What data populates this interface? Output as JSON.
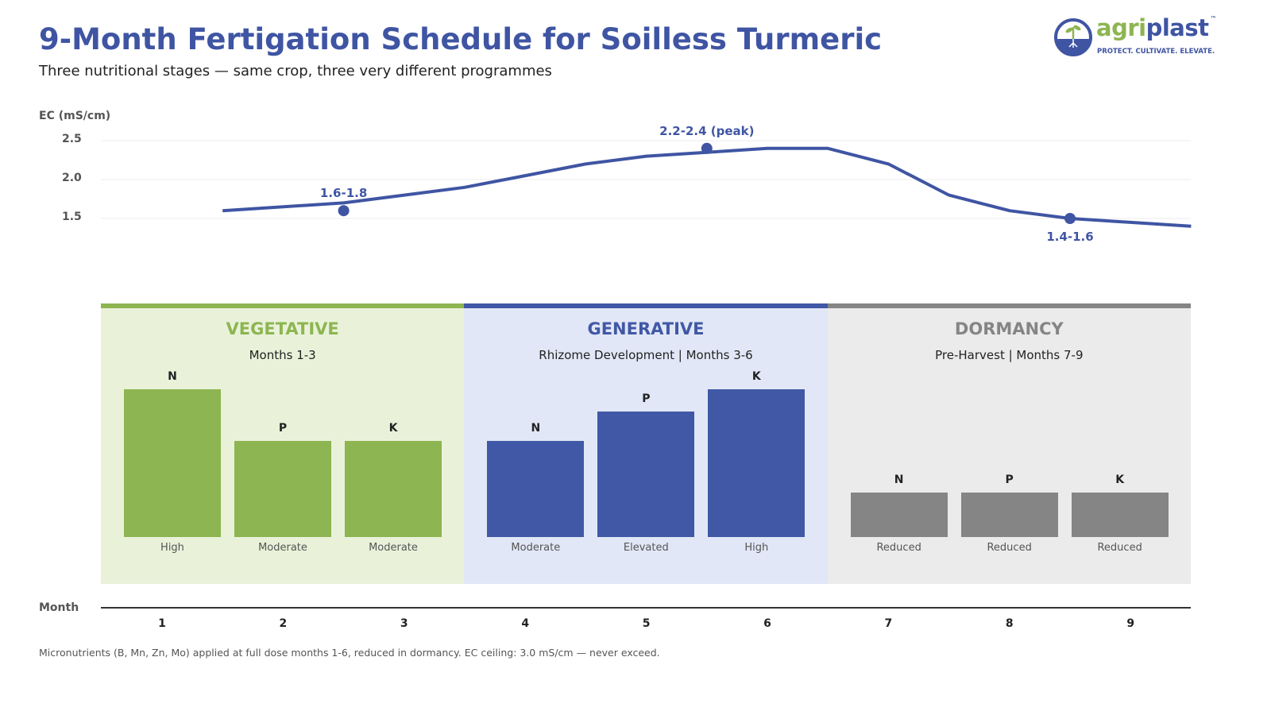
{
  "header": {
    "title": "9-Month Fertigation Schedule for Soilless Turmeric",
    "subtitle": "Three nutritional stages — same crop, three very different programmes"
  },
  "logo": {
    "name_part1": "agri",
    "name_part2": "plast",
    "tm": "™",
    "tagline": "PROTECT. CULTIVATE. ELEVATE."
  },
  "colors": {
    "vegetative": "#8db551",
    "generative": "#4158a6",
    "dormancy": "#858585",
    "line": "#3f55a3"
  },
  "chart_data": [
    {
      "type": "line",
      "ylabel": "EC (mS/cm)",
      "yticks": [
        "1.5",
        "2.0",
        "2.5"
      ],
      "ylim": [
        1.3,
        2.6
      ],
      "xlim": [
        0.5,
        9.5
      ],
      "grid": true,
      "x": [
        1.5,
        2.5,
        3,
        3.5,
        4,
        4.5,
        5,
        5.5,
        6,
        6.5,
        7,
        7.5,
        8,
        8.5,
        9,
        9.5
      ],
      "y": [
        1.6,
        1.7,
        1.8,
        1.9,
        2.05,
        2.2,
        2.3,
        2.35,
        2.4,
        2.4,
        2.2,
        1.8,
        1.6,
        1.5,
        1.45,
        1.4
      ],
      "annotations": [
        {
          "x": 2.5,
          "y": 1.6,
          "label": "1.6-1.8",
          "position": "above"
        },
        {
          "x": 5.5,
          "y": 2.4,
          "label": "2.2-2.4 (peak)",
          "position": "above"
        },
        {
          "x": 8.5,
          "y": 1.5,
          "label": "1.4-1.6",
          "position": "below"
        }
      ]
    },
    {
      "type": "bar",
      "xlabel": "Month",
      "xticks": [
        "1",
        "2",
        "3",
        "4",
        "5",
        "6",
        "7",
        "8",
        "9"
      ],
      "stages": [
        {
          "name": "VEGETATIVE",
          "subtitle": "Months 1-3",
          "color_key": "vegetative",
          "bg": "#e9f2d9",
          "bars": [
            {
              "nutrient": "N",
              "level": "High",
              "value": 1.0
            },
            {
              "nutrient": "P",
              "level": "Moderate",
              "value": 0.65
            },
            {
              "nutrient": "K",
              "level": "Moderate",
              "value": 0.65
            }
          ]
        },
        {
          "name": "GENERATIVE",
          "subtitle": "Rhizome Development | Months 3-6",
          "color_key": "generative",
          "bg": "#e1e7f6",
          "bars": [
            {
              "nutrient": "N",
              "level": "Moderate",
              "value": 0.65
            },
            {
              "nutrient": "P",
              "level": "Elevated",
              "value": 0.85
            },
            {
              "nutrient": "K",
              "level": "High",
              "value": 1.0
            }
          ]
        },
        {
          "name": "DORMANCY",
          "subtitle": "Pre-Harvest | Months 7-9",
          "color_key": "dormancy",
          "bg": "#ebebeb",
          "bars": [
            {
              "nutrient": "N",
              "level": "Reduced",
              "value": 0.3
            },
            {
              "nutrient": "P",
              "level": "Reduced",
              "value": 0.3
            },
            {
              "nutrient": "K",
              "level": "Reduced",
              "value": 0.3
            }
          ]
        }
      ]
    }
  ],
  "footnote": "Micronutrients (B, Mn, Zn, Mo) applied at full dose months 1-6, reduced in dormancy. EC ceiling: 3.0 mS/cm — never exceed."
}
